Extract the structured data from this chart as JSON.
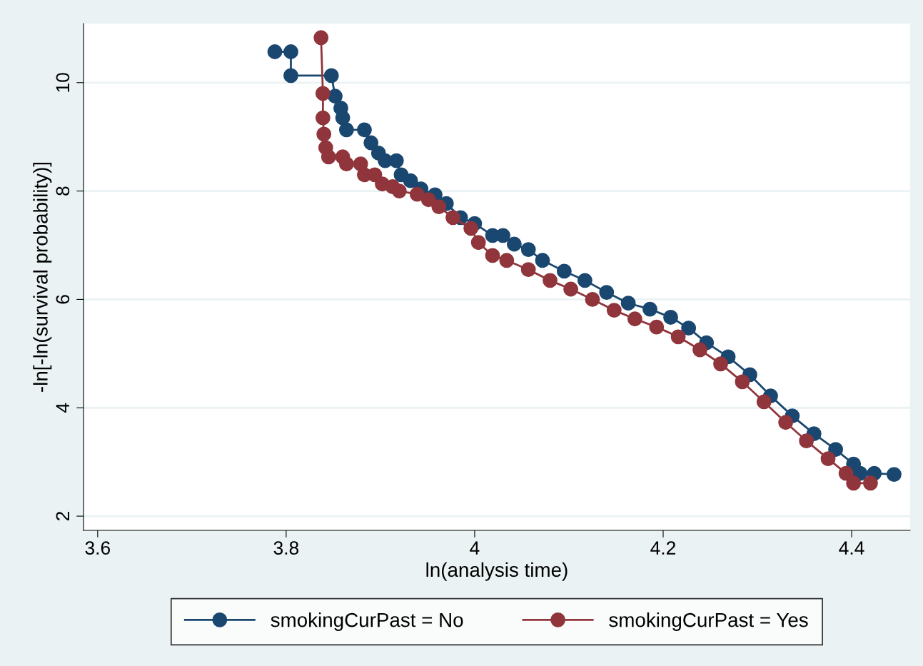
{
  "chart_data": {
    "type": "line",
    "xlabel": "ln(analysis time)",
    "ylabel": "-ln[-ln(survival probability)]",
    "xlim": [
      3.585,
      4.462
    ],
    "xticks": [
      3.6,
      3.8,
      4,
      4.2,
      4.4
    ],
    "ylim": [
      1.737,
      11.09
    ],
    "yticks": [
      2,
      4,
      6,
      8,
      10
    ],
    "grid": "y",
    "legend": "bottom",
    "marker": "circle",
    "line_style": "solid",
    "series": [
      {
        "name": "smokingCurPast = No",
        "color": "#1a476f",
        "x": [
          3.788,
          3.805,
          3.805,
          3.848,
          3.852,
          3.858,
          3.86,
          3.864,
          3.883,
          3.89,
          3.898,
          3.905,
          3.917,
          3.922,
          3.932,
          3.943,
          3.958,
          3.97,
          3.985,
          4.0,
          4.019,
          4.03,
          4.042,
          4.057,
          4.072,
          4.095,
          4.117,
          4.14,
          4.163,
          4.186,
          4.208,
          4.227,
          4.246,
          4.269,
          4.292,
          4.314,
          4.337,
          4.36,
          4.383,
          4.402,
          4.409,
          4.424,
          4.445
        ],
        "values": [
          10.57,
          10.57,
          10.13,
          10.13,
          9.75,
          9.53,
          9.35,
          9.13,
          9.13,
          8.89,
          8.7,
          8.56,
          8.56,
          8.3,
          8.19,
          8.04,
          7.93,
          7.77,
          7.51,
          7.4,
          7.18,
          7.18,
          7.02,
          6.92,
          6.72,
          6.52,
          6.35,
          6.13,
          5.93,
          5.82,
          5.67,
          5.47,
          5.2,
          4.94,
          4.61,
          4.22,
          3.85,
          3.52,
          3.23,
          2.96,
          2.79,
          2.79,
          2.77
        ]
      },
      {
        "name": "smokingCurPast = Yes",
        "color": "#90353b",
        "x": [
          3.837,
          3.839,
          3.839,
          3.84,
          3.842,
          3.845,
          3.86,
          3.864,
          3.879,
          3.883,
          3.894,
          3.902,
          3.913,
          3.92,
          3.939,
          3.951,
          3.962,
          3.977,
          3.996,
          4.004,
          4.019,
          4.034,
          4.057,
          4.08,
          4.102,
          4.125,
          4.148,
          4.17,
          4.193,
          4.216,
          4.239,
          4.261,
          4.284,
          4.307,
          4.33,
          4.352,
          4.375,
          4.394,
          4.402,
          4.42
        ],
        "values": [
          10.83,
          9.8,
          9.35,
          9.05,
          8.8,
          8.63,
          8.63,
          8.5,
          8.5,
          8.3,
          8.3,
          8.13,
          8.08,
          8.0,
          7.94,
          7.84,
          7.71,
          7.51,
          7.31,
          7.05,
          6.81,
          6.72,
          6.55,
          6.35,
          6.19,
          6.0,
          5.8,
          5.64,
          5.49,
          5.31,
          5.07,
          4.81,
          4.48,
          4.11,
          3.73,
          3.39,
          3.06,
          2.79,
          2.61,
          2.61
        ]
      }
    ]
  }
}
